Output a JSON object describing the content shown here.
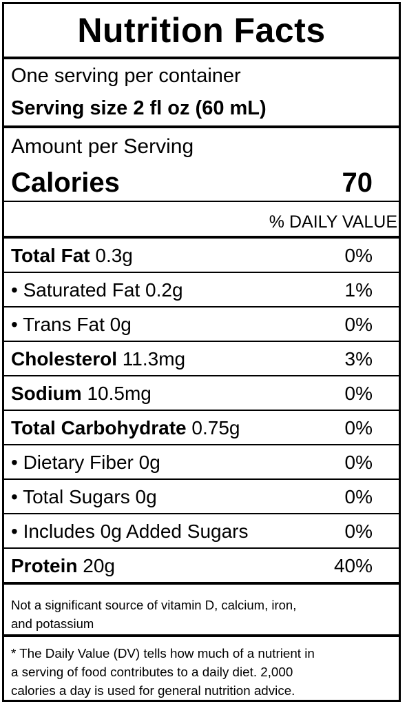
{
  "title": "Nutrition Facts",
  "servings": "One serving per container",
  "serving_size_label": "Serving size",
  "serving_size_value": "2 fl oz (60 mL)",
  "amount_per_serving": "Amount per Serving",
  "calories_label": "Calories",
  "calories_value": "70",
  "dv_header": "% DAILY VALUE",
  "nutrients": [
    {
      "name": "Total Fat",
      "amount": "0.3g",
      "dv": "0%"
    },
    {
      "name": "• Saturated Fat",
      "amount": "0.2g",
      "dv": "1%"
    },
    {
      "name": "• Trans Fat",
      "amount": "0g",
      "dv": "0%"
    },
    {
      "name": "Cholesterol",
      "amount": "11.3mg",
      "dv": "3%"
    },
    {
      "name": "Sodium",
      "amount": "10.5mg",
      "dv": "0%"
    },
    {
      "name": "Total Carbohydrate",
      "amount": "0.75g",
      "dv": "0%"
    },
    {
      "name": "• Dietary Fiber",
      "amount": "0g",
      "dv": "0%"
    },
    {
      "name": "• Total Sugars",
      "amount": "0g",
      "dv": "0%"
    },
    {
      "name": "• Includes 0g Added Sugars",
      "amount": "",
      "dv": "0%"
    },
    {
      "name": "Protein",
      "amount": "20g",
      "dv": "40%"
    }
  ],
  "note_line1": "Not a significant source of vitamin D, calcium, iron,",
  "note_line2": "and potassium",
  "footnote_line1": "* The Daily Value (DV) tells how much of a nutrient in",
  "footnote_line2": "a serving of food contributes to a daily diet. 2,000",
  "footnote_line3": "calories a day is used for general nutrition advice."
}
